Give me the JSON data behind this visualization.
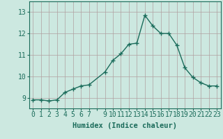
{
  "x": [
    0,
    1,
    2,
    3,
    4,
    5,
    6,
    7,
    9,
    10,
    11,
    12,
    13,
    14,
    15,
    16,
    17,
    18,
    19,
    20,
    21,
    22,
    23
  ],
  "y": [
    8.9,
    8.9,
    8.85,
    8.9,
    9.25,
    9.4,
    9.55,
    9.6,
    10.2,
    10.75,
    11.05,
    11.5,
    11.55,
    12.85,
    12.35,
    12.0,
    12.0,
    11.45,
    10.4,
    9.95,
    9.7,
    9.55,
    9.55
  ],
  "line_color": "#1a6b5a",
  "marker": "D",
  "marker_size": 2.0,
  "bg_color": "#cce8e0",
  "grid_color": "#b0a0a0",
  "xlabel": "Humidex (Indice chaleur)",
  "ylim": [
    8.5,
    13.5
  ],
  "xlim": [
    -0.5,
    23.5
  ],
  "yticks": [
    9,
    10,
    11,
    12,
    13
  ],
  "xtick_labels": [
    "0",
    "1",
    "2",
    "3",
    "4",
    "5",
    "6",
    "7",
    "",
    "9",
    "10",
    "11",
    "12",
    "13",
    "14",
    "15",
    "16",
    "17",
    "18",
    "19",
    "20",
    "21",
    "22",
    "23"
  ],
  "xlabel_fontsize": 7.5,
  "tick_fontsize": 7,
  "linewidth": 1.0
}
